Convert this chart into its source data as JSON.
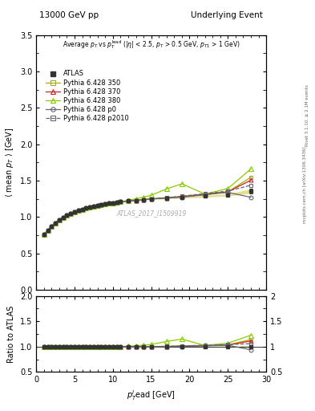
{
  "title_left": "13000 GeV pp",
  "title_right": "Underlying Event",
  "watermark": "ATLAS_2017_I1509919",
  "right_label1": "Rivet 3.1.10, ≥ 2.1M events",
  "right_label2": "mcplots.cern.ch [arXiv:1306.3436]",
  "ylim_main": [
    0.0,
    3.5
  ],
  "ylim_ratio": [
    0.5,
    2.0
  ],
  "xlim": [
    0,
    30
  ],
  "atlas_x": [
    1.0,
    1.5,
    2.0,
    2.5,
    3.0,
    3.5,
    4.0,
    4.5,
    5.0,
    5.5,
    6.0,
    6.5,
    7.0,
    7.5,
    8.0,
    8.5,
    9.0,
    9.5,
    10.0,
    10.5,
    11.0,
    12.0,
    13.0,
    14.0,
    15.0,
    17.0,
    19.0,
    22.0,
    25.0,
    28.0
  ],
  "atlas_y": [
    0.755,
    0.818,
    0.872,
    0.92,
    0.96,
    0.992,
    1.022,
    1.048,
    1.07,
    1.089,
    1.106,
    1.121,
    1.135,
    1.147,
    1.158,
    1.168,
    1.177,
    1.185,
    1.193,
    1.2,
    1.207,
    1.218,
    1.228,
    1.237,
    1.245,
    1.258,
    1.267,
    1.285,
    1.303,
    1.355
  ],
  "atlas_yerr": [
    0.018,
    0.012,
    0.01,
    0.009,
    0.008,
    0.008,
    0.007,
    0.007,
    0.007,
    0.007,
    0.007,
    0.007,
    0.007,
    0.007,
    0.007,
    0.007,
    0.007,
    0.007,
    0.007,
    0.007,
    0.007,
    0.007,
    0.007,
    0.008,
    0.008,
    0.009,
    0.01,
    0.013,
    0.016,
    0.03
  ],
  "p350_y": [
    0.755,
    0.818,
    0.872,
    0.92,
    0.96,
    0.992,
    1.022,
    1.048,
    1.07,
    1.089,
    1.106,
    1.121,
    1.135,
    1.147,
    1.158,
    1.168,
    1.177,
    1.185,
    1.193,
    1.2,
    1.207,
    1.218,
    1.228,
    1.237,
    1.247,
    1.265,
    1.283,
    1.315,
    1.345,
    1.545
  ],
  "p370_y": [
    0.755,
    0.818,
    0.872,
    0.92,
    0.96,
    0.992,
    1.022,
    1.048,
    1.07,
    1.089,
    1.106,
    1.121,
    1.135,
    1.147,
    1.158,
    1.168,
    1.177,
    1.185,
    1.193,
    1.2,
    1.207,
    1.218,
    1.228,
    1.237,
    1.247,
    1.262,
    1.277,
    1.308,
    1.345,
    1.505
  ],
  "p380_y": [
    0.755,
    0.818,
    0.872,
    0.92,
    0.96,
    0.992,
    1.022,
    1.048,
    1.07,
    1.089,
    1.106,
    1.121,
    1.135,
    1.147,
    1.158,
    1.168,
    1.177,
    1.185,
    1.193,
    1.2,
    1.21,
    1.228,
    1.25,
    1.272,
    1.298,
    1.385,
    1.455,
    1.315,
    1.39,
    1.66
  ],
  "p0_y": [
    0.755,
    0.818,
    0.872,
    0.92,
    0.96,
    0.992,
    1.022,
    1.048,
    1.07,
    1.089,
    1.106,
    1.121,
    1.135,
    1.147,
    1.158,
    1.168,
    1.177,
    1.185,
    1.193,
    1.2,
    1.207,
    1.218,
    1.228,
    1.237,
    1.247,
    1.26,
    1.272,
    1.305,
    1.338,
    1.27
  ],
  "p2010_y": [
    0.755,
    0.818,
    0.872,
    0.92,
    0.96,
    0.992,
    1.022,
    1.048,
    1.07,
    1.089,
    1.106,
    1.121,
    1.135,
    1.147,
    1.158,
    1.168,
    1.177,
    1.185,
    1.193,
    1.2,
    1.207,
    1.218,
    1.228,
    1.237,
    1.247,
    1.265,
    1.285,
    1.32,
    1.355,
    1.435
  ],
  "color_atlas": "#333333",
  "color_350": "#aaaa00",
  "color_370": "#cc2222",
  "color_380": "#88cc00",
  "color_p0": "#666677",
  "color_p2010": "#666677",
  "bg_color": "#ffffff"
}
